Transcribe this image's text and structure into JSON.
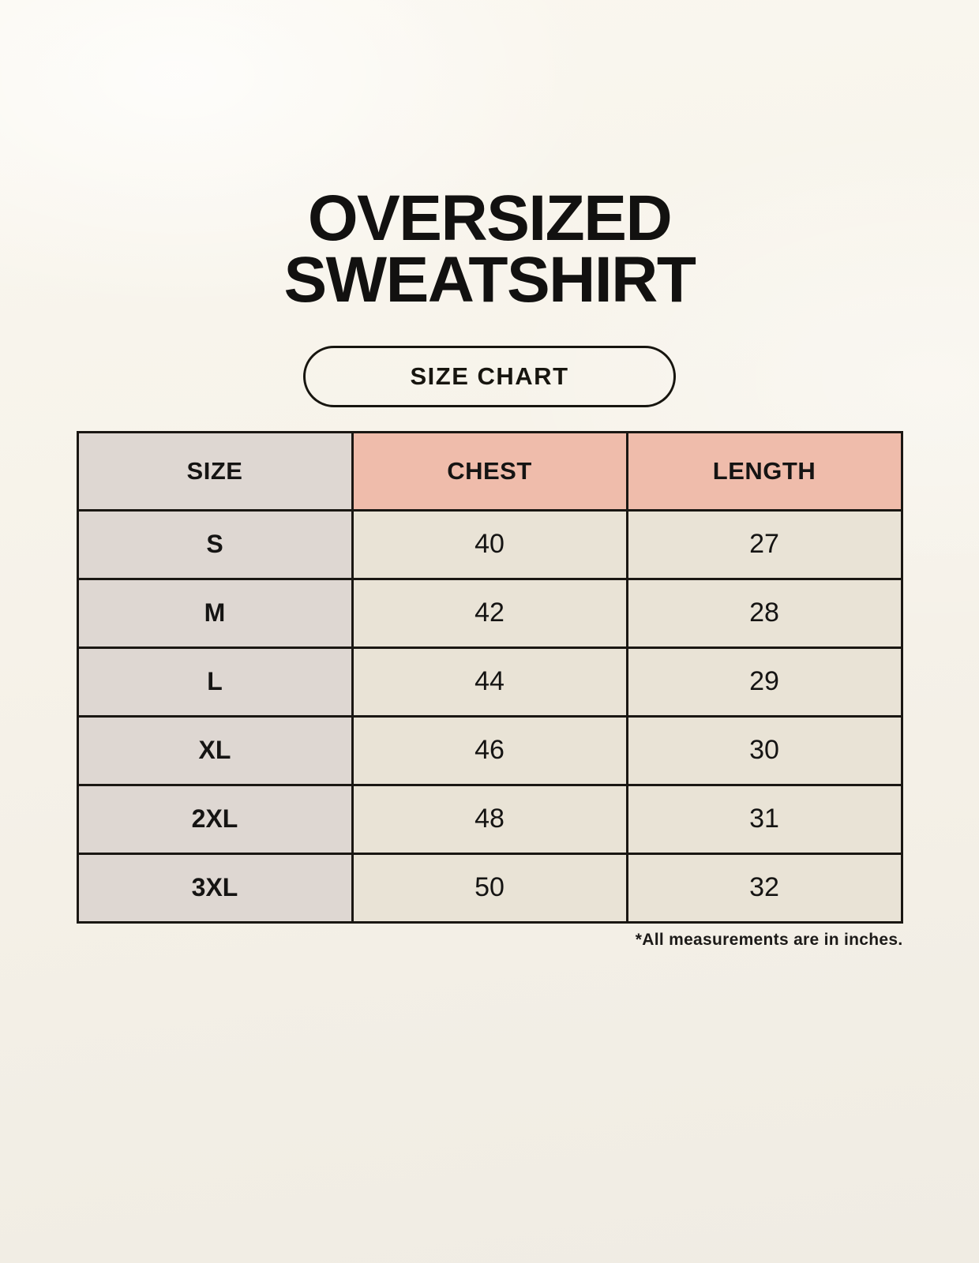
{
  "page": {
    "title_line1": "OVERSIZED",
    "title_line2": "SWEATSHIRT",
    "badge_label": "SIZE CHART",
    "footnote": "*All measurements are in inches."
  },
  "colors": {
    "bg-top": "#faf7ef",
    "bg-bottom": "#f0ece3",
    "header-pink": "#efbcab",
    "cell-gray": "#ded7d2",
    "cell-cream": "#e9e3d6",
    "table-border": "#1a1713",
    "text-dark": "#151413"
  },
  "chart_data": {
    "type": "table",
    "title": "OVERSIZED SWEATSHIRT SIZE CHART",
    "units": "inches",
    "columns": [
      "SIZE",
      "CHEST",
      "LENGTH"
    ],
    "rows": [
      [
        "S",
        "40",
        "27"
      ],
      [
        "M",
        "42",
        "28"
      ],
      [
        "L",
        "44",
        "29"
      ],
      [
        "XL",
        "46",
        "30"
      ],
      [
        "2XL",
        "48",
        "31"
      ],
      [
        "3XL",
        "50",
        "32"
      ]
    ]
  }
}
